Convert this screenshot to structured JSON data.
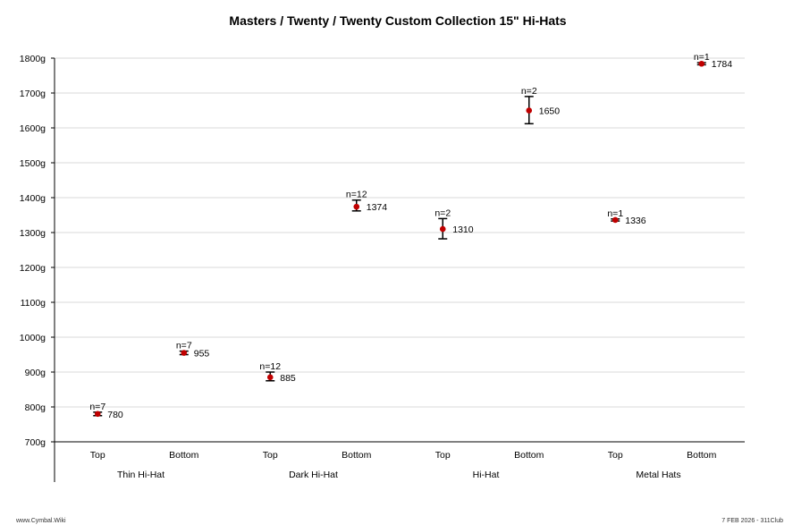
{
  "footer": {
    "left": "www.Cymbal.Wiki",
    "right": "7 FEB 2026 - 311Club"
  },
  "chart_data": {
    "type": "scatter",
    "title": "Masters / Twenty / Twenty Custom Collection 15\" Hi-Hats",
    "xlabel": "",
    "ylabel": "",
    "ylim": [
      700,
      1800
    ],
    "y_ticks": [
      "700g",
      "800g",
      "900g",
      "1000g",
      "1100g",
      "1200g",
      "1300g",
      "1400g",
      "1500g",
      "1600g",
      "1700g",
      "1800g"
    ],
    "grid": true,
    "legend": "none",
    "marker_color": "#c00000",
    "groups": [
      "Thin Hi-Hat",
      "Dark Hi-Hat",
      "Hi-Hat",
      "Metal Hats"
    ],
    "points": [
      {
        "group": "Thin Hi-Hat",
        "category": "Top",
        "value": 780,
        "value_label": "780",
        "err_low": 775,
        "err_high": 785,
        "n_label": "n=7"
      },
      {
        "group": "Thin Hi-Hat",
        "category": "Bottom",
        "value": 955,
        "value_label": "955",
        "err_low": 950,
        "err_high": 960,
        "n_label": "n=7"
      },
      {
        "group": "Dark Hi-Hat",
        "category": "Top",
        "value": 885,
        "value_label": "885",
        "err_low": 875,
        "err_high": 900,
        "n_label": "n=12"
      },
      {
        "group": "Dark Hi-Hat",
        "category": "Bottom",
        "value": 1374,
        "value_label": "1374",
        "err_low": 1362,
        "err_high": 1393,
        "n_label": "n=12"
      },
      {
        "group": "Hi-Hat",
        "category": "Top",
        "value": 1310,
        "value_label": "1310",
        "err_low": 1282,
        "err_high": 1340,
        "n_label": "n=2"
      },
      {
        "group": "Hi-Hat",
        "category": "Bottom",
        "value": 1650,
        "value_label": "1650",
        "err_low": 1612,
        "err_high": 1690,
        "n_label": "n=2"
      },
      {
        "group": "Metal Hats",
        "category": "Top",
        "value": 1336,
        "value_label": "1336",
        "err_low": 1333,
        "err_high": 1339,
        "n_label": "n=1"
      },
      {
        "group": "Metal Hats",
        "category": "Bottom",
        "value": 1784,
        "value_label": "1784",
        "err_low": 1781,
        "err_high": 1787,
        "n_label": "n=1"
      }
    ]
  }
}
